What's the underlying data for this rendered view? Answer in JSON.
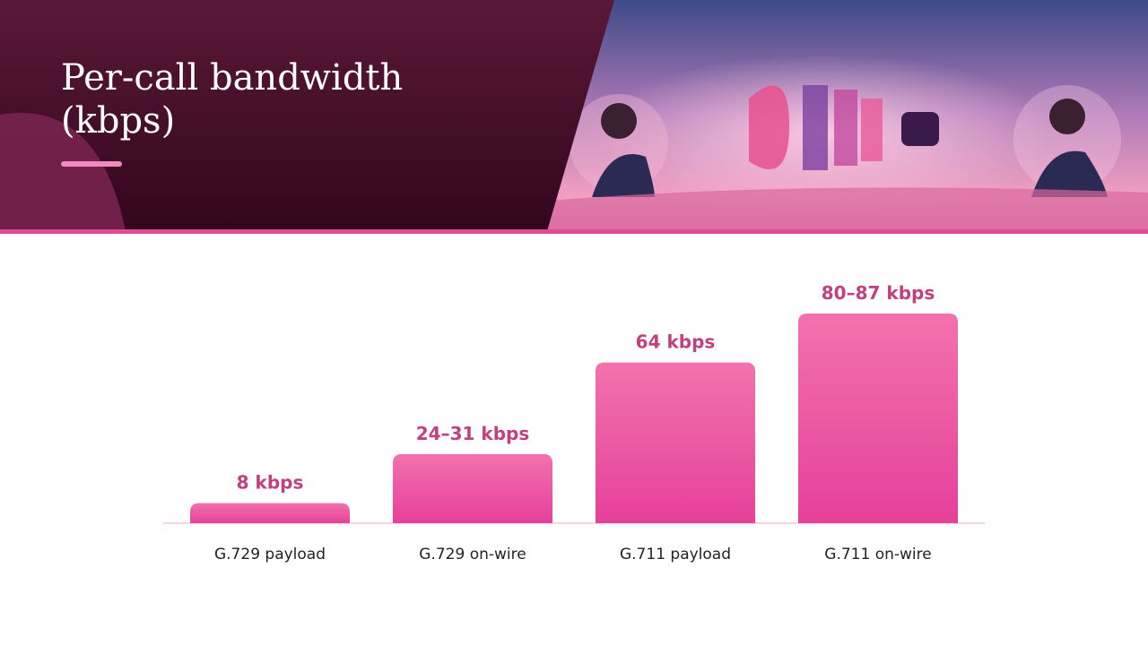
{
  "chart_data": {
    "type": "bar",
    "title": "Per-call bandwidth (kbps)",
    "categories": [
      "G.729 payload",
      "G.729 on-wire",
      "G.711 payload",
      "G.711 on-wire"
    ],
    "values": [
      8,
      27.5,
      64,
      83.5
    ],
    "value_labels": [
      "8 kbps",
      "24–31 kbps",
      "64 kbps",
      "80–87 kbps"
    ],
    "color": "#ec4f9f"
  }
}
